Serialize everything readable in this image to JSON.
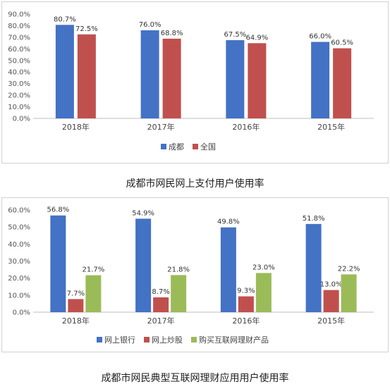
{
  "chart_data": [
    {
      "type": "bar",
      "title": "成都市网民网上支付用户使用率",
      "categories": [
        "2018年",
        "2017年",
        "2016年",
        "2015年"
      ],
      "series": [
        {
          "name": "成都",
          "values": [
            80.7,
            76.0,
            67.5,
            66.0
          ],
          "labels": [
            "80.7%",
            "76.0%",
            "67.5%",
            "66.0%"
          ],
          "color": "#4472c4"
        },
        {
          "name": "全国",
          "values": [
            72.5,
            68.8,
            64.9,
            60.5
          ],
          "labels": [
            "72.5%",
            "68.8%",
            "64.9%",
            "60.5%"
          ],
          "color": "#c0504d"
        }
      ],
      "ylim": [
        0,
        90
      ],
      "yticks": [
        0,
        10,
        20,
        30,
        40,
        50,
        60,
        70,
        80,
        90
      ],
      "yticklabels": [
        "0.0%",
        "10.0%",
        "20.0%",
        "30.0%",
        "40.0%",
        "50.0%",
        "60.0%",
        "70.0%",
        "80.0%",
        "90.0%"
      ],
      "legend_position": "bottom",
      "grid": false
    },
    {
      "type": "bar",
      "title": "成都市网民典型互联网理财应用用户使用率",
      "categories": [
        "2018年",
        "2017年",
        "2016年",
        "2015年"
      ],
      "series": [
        {
          "name": "网上银行",
          "values": [
            56.8,
            54.9,
            49.8,
            51.8
          ],
          "labels": [
            "56.8%",
            "54.9%",
            "49.8%",
            "51.8%"
          ],
          "color": "#4472c4"
        },
        {
          "name": "网上炒股",
          "values": [
            7.7,
            8.7,
            9.3,
            13.0
          ],
          "labels": [
            "7.7%",
            "8.7%",
            "9.3%",
            "13.0%"
          ],
          "color": "#c0504d"
        },
        {
          "name": "购买互联网理财产品",
          "values": [
            21.7,
            21.8,
            23.0,
            22.2
          ],
          "labels": [
            "21.7%",
            "21.8%",
            "23.0%",
            "22.2%"
          ],
          "color": "#9bbb59"
        }
      ],
      "ylim": [
        0,
        60
      ],
      "yticks": [
        0,
        10,
        20,
        30,
        40,
        50,
        60
      ],
      "yticklabels": [
        "0.0%",
        "10.0%",
        "20.0%",
        "30.0%",
        "40.0%",
        "50.0%",
        "60.0%"
      ],
      "legend_position": "bottom",
      "grid": false
    }
  ]
}
